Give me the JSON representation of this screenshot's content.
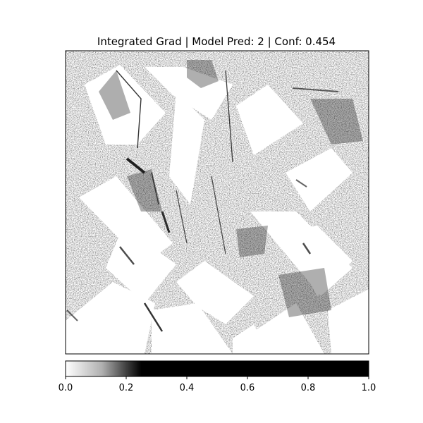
{
  "chart_data": {
    "type": "heatmap",
    "title": "Integrated Grad | Model Pred: 2 | Conf: 0.454",
    "colormap": "gray_r",
    "axes_ticks_visible": false,
    "colorbar": {
      "orientation": "horizontal",
      "placement": "bottom",
      "range": [
        0.0,
        1.0
      ],
      "saturation_note_value": 0.25,
      "ticks": [
        {
          "value": 0.0,
          "label": "0.0"
        },
        {
          "value": 0.2,
          "label": "0.2"
        },
        {
          "value": 0.4,
          "label": "0.4"
        },
        {
          "value": 0.6,
          "label": "0.6"
        },
        {
          "value": 0.8,
          "label": "0.8"
        },
        {
          "value": 1.0,
          "label": "1.0"
        }
      ]
    }
  }
}
